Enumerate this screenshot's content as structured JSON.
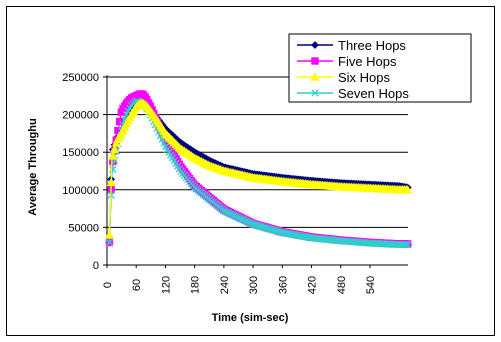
{
  "chart_data": {
    "type": "line",
    "xlabel": "Time (sim-sec)",
    "ylabel": "Average Throughu",
    "xlim": [
      0,
      618
    ],
    "ylim": [
      0,
      250000
    ],
    "x_ticks": [
      "0",
      "60",
      "120",
      "180",
      "240",
      "300",
      "360",
      "420",
      "480",
      "540"
    ],
    "y_ticks": [
      "0",
      "50000",
      "100000",
      "150000",
      "200000",
      "250000"
    ],
    "grid": "horizontal",
    "legend_position": "top-right",
    "series": [
      {
        "name": "Three Hops",
        "color": "#000080",
        "marker": "diamond",
        "x": [
          5,
          10,
          20,
          30,
          40,
          50,
          60,
          70,
          80,
          90,
          100,
          120,
          150,
          180,
          210,
          240,
          300,
          360,
          420,
          480,
          540,
          600,
          618
        ],
        "y": [
          30000,
          150000,
          168000,
          178000,
          190000,
          205000,
          213000,
          218000,
          214000,
          207000,
          198000,
          181000,
          163000,
          150000,
          139000,
          130000,
          121000,
          116000,
          112000,
          109000,
          107000,
          105000,
          103000
        ]
      },
      {
        "name": "Five Hops",
        "color": "#FF00FF",
        "marker": "square",
        "x": [
          5,
          10,
          20,
          30,
          40,
          50,
          60,
          70,
          75,
          80,
          90,
          100,
          120,
          150,
          180,
          240,
          300,
          360,
          420,
          480,
          540,
          600,
          618
        ],
        "y": [
          30000,
          130000,
          170000,
          205000,
          215000,
          222000,
          225000,
          228000,
          226000,
          222000,
          210000,
          195000,
          165000,
          132000,
          106000,
          74000,
          55000,
          44000,
          37000,
          33000,
          30000,
          28000,
          28000
        ]
      },
      {
        "name": "Six Hops",
        "color": "#FFFF00",
        "marker": "triangle",
        "x": [
          5,
          10,
          20,
          30,
          40,
          50,
          60,
          70,
          80,
          90,
          100,
          120,
          150,
          180,
          210,
          240,
          300,
          360,
          420,
          480,
          540,
          600,
          618
        ],
        "y": [
          40000,
          140000,
          165000,
          175000,
          188000,
          200000,
          210000,
          216000,
          212000,
          204000,
          195000,
          175000,
          155000,
          142000,
          132000,
          125000,
          116000,
          111000,
          107000,
          104000,
          102000,
          100000,
          100000
        ]
      },
      {
        "name": "Seven Hops",
        "color": "#33CCCC",
        "marker": "x",
        "x": [
          5,
          10,
          20,
          30,
          40,
          50,
          60,
          70,
          80,
          90,
          100,
          120,
          150,
          180,
          240,
          300,
          360,
          420,
          480,
          540,
          600,
          618
        ],
        "y": [
          30000,
          120000,
          155000,
          180000,
          200000,
          212000,
          218000,
          216000,
          210000,
          198000,
          186000,
          158000,
          126000,
          103000,
          72000,
          54000,
          43000,
          36000,
          32000,
          29000,
          27000,
          27000
        ]
      }
    ]
  }
}
